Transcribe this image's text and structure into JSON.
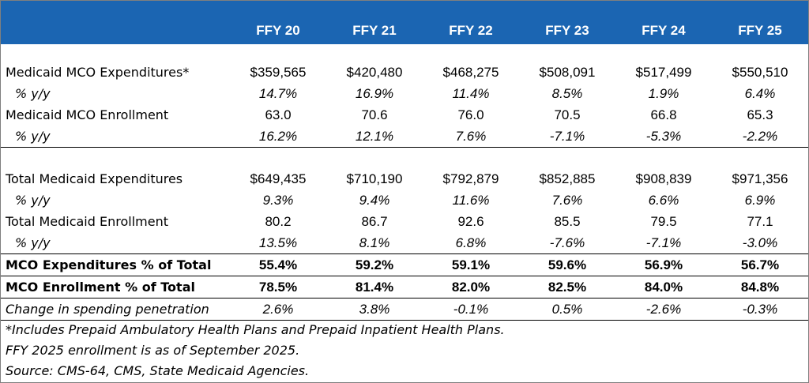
{
  "header": [
    "FFY 20",
    "FFY 21",
    "FFY 22",
    "FFY 23",
    "FFY 24",
    "FFY 25"
  ],
  "rows": {
    "mco_exp": {
      "label": "Medicaid MCO Expenditures*",
      "values": [
        "$359,565",
        "$420,480",
        "$468,275",
        "$508,091",
        "$517,499",
        "$550,510"
      ]
    },
    "mco_exp_yy": {
      "label": "% y/y",
      "values": [
        "14.7%",
        "16.9%",
        "11.4%",
        "8.5%",
        "1.9%",
        "6.4%"
      ]
    },
    "mco_enr": {
      "label": "Medicaid MCO Enrollment",
      "values": [
        "63.0",
        "70.6",
        "76.0",
        "70.5",
        "66.8",
        "65.3"
      ]
    },
    "mco_enr_yy": {
      "label": "% y/y",
      "values": [
        "16.2%",
        "12.1%",
        "7.6%",
        "-7.1%",
        "-5.3%",
        "-2.2%"
      ]
    },
    "tot_exp": {
      "label": "Total Medicaid Expenditures",
      "values": [
        "$649,435",
        "$710,190",
        "$792,879",
        "$852,885",
        "$908,839",
        "$971,356"
      ]
    },
    "tot_exp_yy": {
      "label": "% y/y",
      "values": [
        "9.3%",
        "9.4%",
        "11.6%",
        "7.6%",
        "6.6%",
        "6.9%"
      ]
    },
    "tot_enr": {
      "label": "Total Medicaid Enrollment",
      "values": [
        "80.2",
        "86.7",
        "92.6",
        "85.5",
        "79.5",
        "77.1"
      ]
    },
    "tot_enr_yy": {
      "label": "% y/y",
      "values": [
        "13.5%",
        "8.1%",
        "6.8%",
        "-7.6%",
        "-7.1%",
        "-3.0%"
      ]
    },
    "mco_exp_pct": {
      "label": "MCO Expenditures % of Total",
      "values": [
        "55.4%",
        "59.2%",
        "59.1%",
        "59.6%",
        "56.9%",
        "56.7%"
      ]
    },
    "mco_enr_pct": {
      "label": "MCO Enrollment % of Total",
      "values": [
        "78.5%",
        "81.4%",
        "82.0%",
        "82.5%",
        "84.0%",
        "84.8%"
      ]
    },
    "change_pen": {
      "label": "Change in spending penetration",
      "values": [
        "2.6%",
        "3.8%",
        "-0.1%",
        "0.5%",
        "-2.6%",
        "-0.3%"
      ]
    }
  },
  "notes": [
    "*Includes Prepaid Ambulatory Health Plans and Prepaid Inpatient Health Plans.",
    "FFY 2025 enrollment is as of September 2025.",
    "Source: CMS-64, CMS, State Medicaid Agencies."
  ],
  "colors": {
    "header_bg": "#1b65b2",
    "header_text": "#ffffff"
  }
}
